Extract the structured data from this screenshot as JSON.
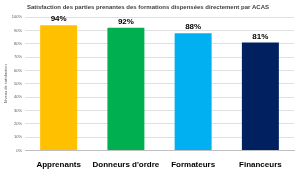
{
  "chart_data": {
    "type": "bar",
    "title": "Satisfaction des parties prenantes des formations dispensées directement par ACAS",
    "y_label": "Niveau de satisfaction",
    "categories": [
      "Apprenants",
      "Donneurs d'ordre",
      "Formateurs",
      "Financeurs"
    ],
    "values": [
      94,
      92,
      88,
      81
    ],
    "value_labels": [
      "94%",
      "92%",
      "88%",
      "81%"
    ],
    "colors": [
      "#ffc000",
      "#00b050",
      "#00b0f0",
      "#002060"
    ],
    "ylim": [
      0,
      100
    ],
    "yticks": [
      {
        "value": 0,
        "label": "0%"
      },
      {
        "value": 10,
        "label": "10%"
      },
      {
        "value": 20,
        "label": "20%"
      },
      {
        "value": 30,
        "label": "30%"
      },
      {
        "value": 40,
        "label": "40%"
      },
      {
        "value": 50,
        "label": "50%"
      },
      {
        "value": 60,
        "label": "60%"
      },
      {
        "value": 70,
        "label": "70%"
      },
      {
        "value": 80,
        "label": "80%"
      },
      {
        "value": 90,
        "label": "90%"
      },
      {
        "value": 100,
        "label": "100%"
      }
    ],
    "grid": true,
    "data_labels": true
  }
}
